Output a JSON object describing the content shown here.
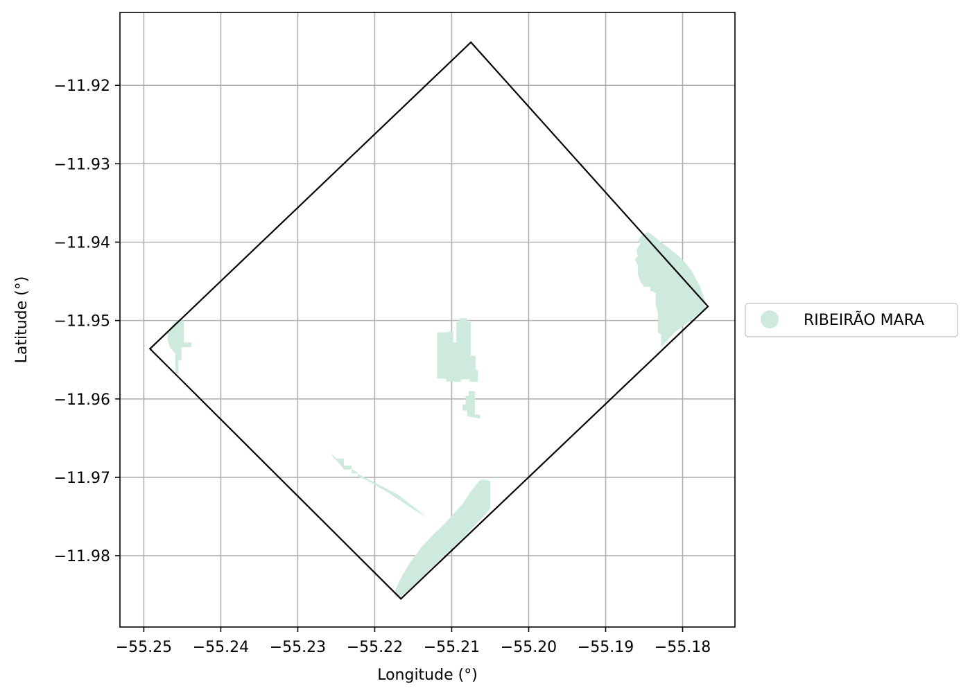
{
  "chart_data": {
    "type": "map",
    "xlabel": "Longitude (°)",
    "ylabel": "Latitude (°)",
    "xlim": [
      -55.2531,
      -55.1732
    ],
    "ylim": [
      -11.9891,
      -11.9107
    ],
    "grid": true,
    "x_ticks": [
      {
        "value": -55.25,
        "label": "−55.25"
      },
      {
        "value": -55.24,
        "label": "−55.24"
      },
      {
        "value": -55.23,
        "label": "−55.23"
      },
      {
        "value": -55.22,
        "label": "−55.22"
      },
      {
        "value": -55.21,
        "label": "−55.21"
      },
      {
        "value": -55.2,
        "label": "−55.20"
      },
      {
        "value": -55.19,
        "label": "−55.19"
      },
      {
        "value": -55.18,
        "label": "−55.18"
      }
    ],
    "y_ticks": [
      {
        "value": -11.92,
        "label": "−11.92"
      },
      {
        "value": -11.93,
        "label": "−11.93"
      },
      {
        "value": -11.94,
        "label": "−11.94"
      },
      {
        "value": -11.95,
        "label": "−11.95"
      },
      {
        "value": -11.96,
        "label": "−11.96"
      },
      {
        "value": -11.97,
        "label": "−11.97"
      },
      {
        "value": -11.98,
        "label": "−11.98"
      }
    ],
    "boundary": {
      "stroke": "#000000",
      "coordinates": [
        [
          -55.2075,
          -11.9145
        ],
        [
          -55.1767,
          -11.9482
        ],
        [
          -55.2166,
          -11.9855
        ],
        [
          -55.2492,
          -11.9536
        ],
        [
          -55.2075,
          -11.9145
        ]
      ]
    },
    "legend": {
      "placement": "center-right, outside"
    },
    "series": [
      {
        "name": "RIBEIRÃO MARA",
        "color": "#cdeadd",
        "polygons": [
          [
            [
              -55.2458,
              -11.95
            ],
            [
              -55.2448,
              -11.95
            ],
            [
              -55.2448,
              -11.9528
            ],
            [
              -55.2438,
              -11.9528
            ],
            [
              -55.2438,
              -11.9534
            ],
            [
              -55.2451,
              -11.9534
            ],
            [
              -55.2451,
              -11.9551
            ],
            [
              -55.2455,
              -11.9551
            ],
            [
              -55.2455,
              -11.9568
            ],
            [
              -55.2459,
              -11.9568
            ],
            [
              -55.2459,
              -11.9542
            ],
            [
              -55.2465,
              -11.9536
            ],
            [
              -55.2469,
              -11.9526
            ],
            [
              -55.2469,
              -11.9514
            ],
            [
              -55.2465,
              -11.9508
            ]
          ],
          [
            [
              -55.209,
              -11.9497
            ],
            [
              -55.208,
              -11.9497
            ],
            [
              -55.208,
              -11.9502
            ],
            [
              -55.2075,
              -11.9502
            ],
            [
              -55.2075,
              -11.9545
            ],
            [
              -55.2069,
              -11.9545
            ],
            [
              -55.2069,
              -11.9563
            ],
            [
              -55.2066,
              -11.9563
            ],
            [
              -55.2066,
              -11.9578
            ],
            [
              -55.2077,
              -11.9578
            ],
            [
              -55.2077,
              -11.9575
            ],
            [
              -55.2088,
              -11.9575
            ],
            [
              -55.2088,
              -11.9578
            ],
            [
              -55.2107,
              -11.9578
            ],
            [
              -55.2107,
              -11.9574
            ],
            [
              -55.2119,
              -11.9574
            ],
            [
              -55.2119,
              -11.9515
            ],
            [
              -55.2104,
              -11.9515
            ],
            [
              -55.2104,
              -11.9514
            ],
            [
              -55.2098,
              -11.9514
            ],
            [
              -55.2098,
              -11.9528
            ],
            [
              -55.2094,
              -11.9528
            ],
            [
              -55.2094,
              -11.9502
            ],
            [
              -55.209,
              -11.9502
            ]
          ],
          [
            [
              -55.2078,
              -11.959
            ],
            [
              -55.207,
              -11.959
            ],
            [
              -55.207,
              -11.962
            ],
            [
              -55.2063,
              -11.962
            ],
            [
              -55.2063,
              -11.9625
            ],
            [
              -55.208,
              -11.9622
            ],
            [
              -55.208,
              -11.9615
            ],
            [
              -55.2086,
              -11.9615
            ],
            [
              -55.2086,
              -11.9607
            ],
            [
              -55.2082,
              -11.9607
            ],
            [
              -55.2082,
              -11.9596
            ],
            [
              -55.2078,
              -11.9596
            ]
          ],
          [
            [
              -55.2257,
              -11.9669
            ],
            [
              -55.225,
              -11.9676
            ],
            [
              -55.224,
              -11.9676
            ],
            [
              -55.224,
              -11.9685
            ],
            [
              -55.223,
              -11.9685
            ],
            [
              -55.223,
              -11.9695
            ],
            [
              -55.2223,
              -11.9695
            ],
            [
              -55.217,
              -11.9722
            ],
            [
              -55.2132,
              -11.9751
            ],
            [
              -55.2148,
              -11.9742
            ],
            [
              -55.2185,
              -11.9718
            ],
            [
              -55.2212,
              -11.9703
            ],
            [
              -55.2222,
              -11.9699
            ],
            [
              -55.2222,
              -11.9694
            ],
            [
              -55.2229,
              -11.969
            ],
            [
              -55.224,
              -11.969
            ],
            [
              -55.2248,
              -11.968
            ],
            [
              -55.2253,
              -11.9676
            ]
          ],
          [
            [
              -55.2055,
              -11.9703
            ],
            [
              -55.2063,
              -11.9703
            ],
            [
              -55.2075,
              -11.9718
            ],
            [
              -55.2085,
              -11.9733
            ],
            [
              -55.2098,
              -11.9747
            ],
            [
              -55.211,
              -11.976
            ],
            [
              -55.2125,
              -11.9774
            ],
            [
              -55.214,
              -11.979
            ],
            [
              -55.2155,
              -11.981
            ],
            [
              -55.2167,
              -11.983
            ],
            [
              -55.2175,
              -11.9848
            ],
            [
              -55.2168,
              -11.9854
            ],
            [
              -55.2141,
              -11.983
            ],
            [
              -55.2113,
              -11.9803
            ],
            [
              -55.2084,
              -11.9776
            ],
            [
              -55.2055,
              -11.9746
            ],
            [
              -55.205,
              -11.9739
            ],
            [
              -55.205,
              -11.9705
            ]
          ],
          [
            [
              -55.1845,
              -11.9387
            ],
            [
              -55.1838,
              -11.9392
            ],
            [
              -55.1828,
              -11.94
            ],
            [
              -55.1815,
              -11.941
            ],
            [
              -55.18,
              -11.9422
            ],
            [
              -55.1788,
              -11.9437
            ],
            [
              -55.1778,
              -11.9455
            ],
            [
              -55.1771,
              -11.9474
            ],
            [
              -55.1771,
              -11.9484
            ],
            [
              -55.179,
              -11.95
            ],
            [
              -55.181,
              -11.9515
            ],
            [
              -55.1828,
              -11.9534
            ],
            [
              -55.1828,
              -11.9518
            ],
            [
              -55.1832,
              -11.9515
            ],
            [
              -55.1832,
              -11.9492
            ],
            [
              -55.1835,
              -11.948
            ],
            [
              -55.1835,
              -11.9465
            ],
            [
              -55.1842,
              -11.9462
            ],
            [
              -55.1842,
              -11.9457
            ],
            [
              -55.185,
              -11.9457
            ],
            [
              -55.1855,
              -11.945
            ],
            [
              -55.1858,
              -11.9442
            ],
            [
              -55.1858,
              -11.943
            ],
            [
              -55.1862,
              -11.9422
            ],
            [
              -55.1858,
              -11.9418
            ],
            [
              -55.186,
              -11.941
            ],
            [
              -55.1855,
              -11.9402
            ],
            [
              -55.1858,
              -11.9398
            ],
            [
              -55.1854,
              -11.9392
            ]
          ]
        ]
      }
    ]
  }
}
